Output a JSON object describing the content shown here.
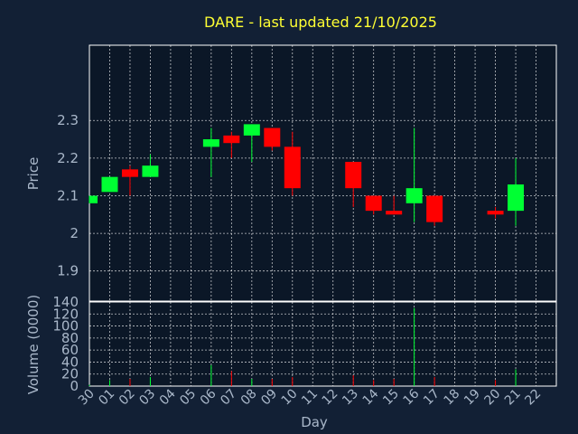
{
  "colors": {
    "background": "#122035",
    "plot_background": "#0b1727",
    "grid": "#ffffff",
    "frame": "#ffffff",
    "title": "#ffff33",
    "axis_text": "#a9b7c9",
    "up": "#00ff33",
    "down": "#ff0000"
  },
  "chart_data": {
    "type": "candlestick",
    "title": "DARE - last updated 21/10/2025",
    "xlabel": "Day",
    "ylabel": "Price",
    "volume_label": "Volume (0000)",
    "x_ticks": [
      "30",
      "01",
      "02",
      "03",
      "04",
      "05",
      "06",
      "07",
      "08",
      "09",
      "10",
      "11",
      "12",
      "13",
      "14",
      "15",
      "16",
      "17",
      "18",
      "19",
      "20",
      "21",
      "22"
    ],
    "price_ylim": [
      1.82,
      2.5
    ],
    "price_ticks": [
      1.9,
      2,
      2.1,
      2.2,
      2.3
    ],
    "price_tick_labels": [
      "1.9",
      "2",
      "2.1",
      "2.2",
      "2.3"
    ],
    "volume_ylim": [
      0,
      140
    ],
    "volume_ticks": [
      0,
      20,
      40,
      60,
      80,
      100,
      120,
      140
    ],
    "grid": true,
    "candles": [
      {
        "day": "30",
        "open": 2.08,
        "high": 2.1,
        "low": 2.08,
        "close": 2.1,
        "volume": 2
      },
      {
        "day": "01",
        "open": 2.11,
        "high": 2.15,
        "low": 2.11,
        "close": 2.15,
        "volume": 10
      },
      {
        "day": "02",
        "open": 2.17,
        "high": 2.18,
        "low": 2.1,
        "close": 2.15,
        "volume": 12
      },
      {
        "day": "03",
        "open": 2.15,
        "high": 2.21,
        "low": 2.15,
        "close": 2.18,
        "volume": 15
      },
      {
        "day": "06",
        "open": 2.23,
        "high": 2.28,
        "low": 2.15,
        "close": 2.25,
        "volume": 35
      },
      {
        "day": "07",
        "open": 2.26,
        "high": 2.27,
        "low": 2.2,
        "close": 2.24,
        "volume": 25
      },
      {
        "day": "08",
        "open": 2.26,
        "high": 2.29,
        "low": 2.19,
        "close": 2.29,
        "volume": 12
      },
      {
        "day": "09",
        "open": 2.28,
        "high": 2.28,
        "low": 2.22,
        "close": 2.23,
        "volume": 12
      },
      {
        "day": "10",
        "open": 2.23,
        "high": 2.27,
        "low": 2.1,
        "close": 2.12,
        "volume": 15
      },
      {
        "day": "13",
        "open": 2.19,
        "high": 2.19,
        "low": 2.07,
        "close": 2.12,
        "volume": 18
      },
      {
        "day": "14",
        "open": 2.1,
        "high": 2.1,
        "low": 2.05,
        "close": 2.06,
        "volume": 10
      },
      {
        "day": "15",
        "open": 2.06,
        "high": 2.1,
        "low": 2.05,
        "close": 2.05,
        "volume": 12
      },
      {
        "day": "16",
        "open": 2.08,
        "high": 2.28,
        "low": 2.03,
        "close": 2.12,
        "volume": 130
      },
      {
        "day": "17",
        "open": 2.1,
        "high": 2.1,
        "low": 2.02,
        "close": 2.03,
        "volume": 15
      },
      {
        "day": "20",
        "open": 2.06,
        "high": 2.07,
        "low": 2.04,
        "close": 2.05,
        "volume": 10
      },
      {
        "day": "21",
        "open": 2.06,
        "high": 2.2,
        "low": 2.02,
        "close": 2.13,
        "volume": 28
      }
    ]
  }
}
